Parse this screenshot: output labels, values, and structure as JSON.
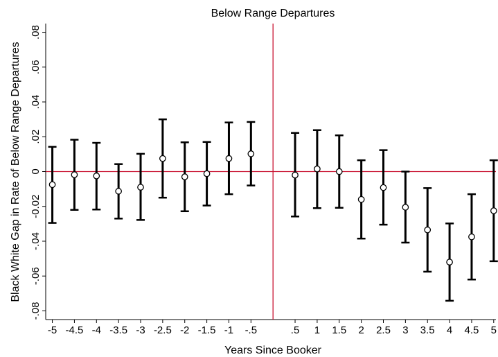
{
  "chart_data": {
    "type": "scatter",
    "title": "Below Range Departures",
    "xlabel": "Years Since Booker",
    "ylabel": "Black White Gap in Rate of Below Range Departures",
    "ylim": [
      -0.085,
      0.085
    ],
    "xlim": [
      -5.15,
      5.05
    ],
    "x_ticks": [
      {
        "value": -5,
        "label": "-5"
      },
      {
        "value": -4.5,
        "label": "-4.5"
      },
      {
        "value": -4,
        "label": "-4"
      },
      {
        "value": -3.5,
        "label": "-3.5"
      },
      {
        "value": -3,
        "label": "-3"
      },
      {
        "value": -2.5,
        "label": "-2.5"
      },
      {
        "value": -2,
        "label": "-2"
      },
      {
        "value": -1.5,
        "label": "-1.5"
      },
      {
        "value": -1,
        "label": "-1"
      },
      {
        "value": -0.5,
        "label": "-.5"
      },
      {
        "value": 0.5,
        "label": ".5"
      },
      {
        "value": 1,
        "label": "1"
      },
      {
        "value": 1.5,
        "label": "1.5"
      },
      {
        "value": 2,
        "label": "2"
      },
      {
        "value": 2.5,
        "label": "2.5"
      },
      {
        "value": 3,
        "label": "3"
      },
      {
        "value": 3.5,
        "label": "3.5"
      },
      {
        "value": 4,
        "label": "4"
      },
      {
        "value": 4.5,
        "label": "4.5"
      },
      {
        "value": 5,
        "label": "5"
      }
    ],
    "y_ticks": [
      {
        "value": 0.08,
        "label": ".08"
      },
      {
        "value": 0.06,
        "label": ".06"
      },
      {
        "value": 0.04,
        "label": ".04"
      },
      {
        "value": 0.02,
        "label": ".02"
      },
      {
        "value": 0,
        "label": "0"
      },
      {
        "value": -0.02,
        "label": "-0.02"
      },
      {
        "value": -0.04,
        "label": "-.04"
      },
      {
        "value": -0.06,
        "label": "-.06"
      },
      {
        "value": -0.08,
        "label": "-.08"
      }
    ],
    "reference_lines": {
      "y": 0,
      "x": 0,
      "color": "#c8102e"
    },
    "grid": false,
    "marker": "hollow-circle",
    "errorbar_color": "#000000",
    "points": [
      {
        "x": -5,
        "y": -0.0075,
        "lo": -0.0295,
        "hi": 0.0142
      },
      {
        "x": -4.5,
        "y": -0.0018,
        "lo": -0.022,
        "hi": 0.0183
      },
      {
        "x": -4,
        "y": -0.0025,
        "lo": -0.0218,
        "hi": 0.0165
      },
      {
        "x": -3.5,
        "y": -0.0113,
        "lo": -0.027,
        "hi": 0.0043
      },
      {
        "x": -3,
        "y": -0.009,
        "lo": -0.0278,
        "hi": 0.0102
      },
      {
        "x": -2.5,
        "y": 0.0075,
        "lo": -0.015,
        "hi": 0.03
      },
      {
        "x": -2,
        "y": -0.003,
        "lo": -0.0228,
        "hi": 0.0168
      },
      {
        "x": -1.5,
        "y": -0.0012,
        "lo": -0.0195,
        "hi": 0.017
      },
      {
        "x": -1,
        "y": 0.0075,
        "lo": -0.013,
        "hi": 0.0282
      },
      {
        "x": -0.5,
        "y": 0.0102,
        "lo": -0.008,
        "hi": 0.0285
      },
      {
        "x": 0.5,
        "y": -0.002,
        "lo": -0.0258,
        "hi": 0.0222
      },
      {
        "x": 1,
        "y": 0.0015,
        "lo": -0.021,
        "hi": 0.0238
      },
      {
        "x": 1.5,
        "y": 0.0,
        "lo": -0.0208,
        "hi": 0.0208
      },
      {
        "x": 2,
        "y": -0.016,
        "lo": -0.0385,
        "hi": 0.0065
      },
      {
        "x": 2.5,
        "y": -0.0092,
        "lo": -0.0305,
        "hi": 0.0123
      },
      {
        "x": 3,
        "y": -0.0205,
        "lo": -0.0408,
        "hi": 0.0
      },
      {
        "x": 3.5,
        "y": -0.0335,
        "lo": -0.0575,
        "hi": -0.0095
      },
      {
        "x": 4,
        "y": -0.052,
        "lo": -0.0742,
        "hi": -0.0298
      },
      {
        "x": 4.5,
        "y": -0.0375,
        "lo": -0.062,
        "hi": -0.013
      },
      {
        "x": 5,
        "y": -0.0225,
        "lo": -0.0515,
        "hi": 0.0065
      }
    ]
  }
}
